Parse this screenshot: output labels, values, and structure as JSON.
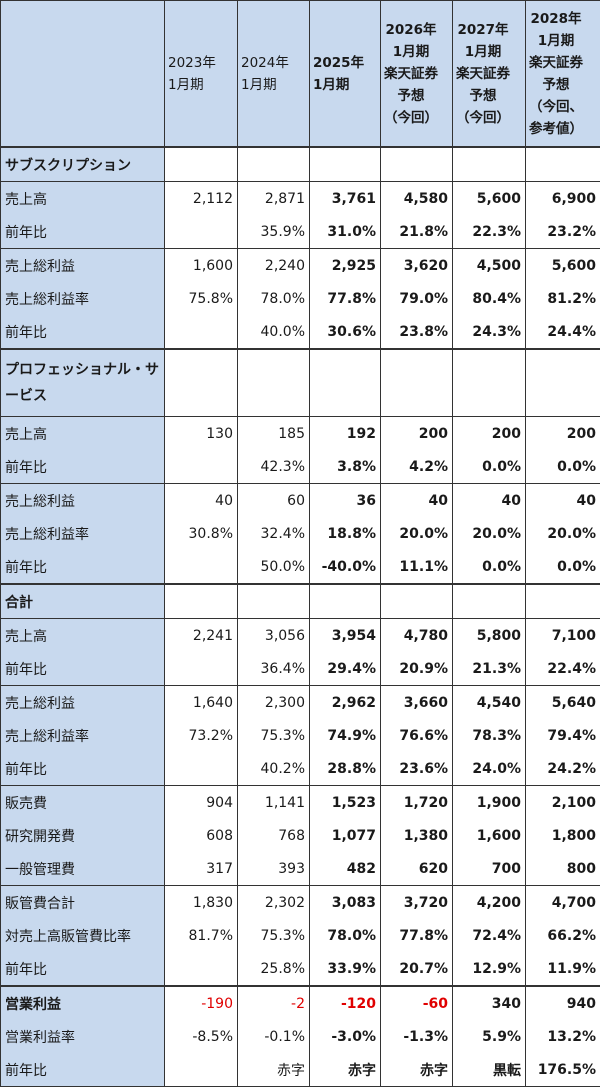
{
  "columns": [
    "2023年\n1月期",
    "2024年\n1月期",
    "2025年\n1月期",
    "2026年\n1月期\n楽天証券\n予想\n（今回）",
    "2027年\n1月期\n楽天証券\n予想\n（今回）",
    "2028年\n1月期\n楽天証券\n予想\n（今回、\n参考値）"
  ],
  "sections": [
    {
      "title": "サブスクリプション",
      "groups": [
        {
          "rows": [
            {
              "label": "売上高",
              "values": [
                "2,112",
                "2,871",
                "3,761",
                "4,580",
                "5,600",
                "6,900"
              ]
            },
            {
              "label": "前年比",
              "values": [
                "",
                "35.9%",
                "31.0%",
                "21.8%",
                "22.3%",
                "23.2%"
              ]
            }
          ]
        },
        {
          "rows": [
            {
              "label": "売上総利益",
              "values": [
                "1,600",
                "2,240",
                "2,925",
                "3,620",
                "4,500",
                "5,600"
              ]
            },
            {
              "label": "売上総利益率",
              "values": [
                "75.8%",
                "78.0%",
                "77.8%",
                "79.0%",
                "80.4%",
                "81.2%"
              ]
            },
            {
              "label": "前年比",
              "values": [
                "",
                "40.0%",
                "30.6%",
                "23.8%",
                "24.3%",
                "24.4%"
              ]
            }
          ]
        }
      ]
    },
    {
      "title": "プロフェッショナル・サービス",
      "groups": [
        {
          "rows": [
            {
              "label": "売上高",
              "values": [
                "130",
                "185",
                "192",
                "200",
                "200",
                "200"
              ]
            },
            {
              "label": "前年比",
              "values": [
                "",
                "42.3%",
                "3.8%",
                "4.2%",
                "0.0%",
                "0.0%"
              ]
            }
          ]
        },
        {
          "rows": [
            {
              "label": "売上総利益",
              "values": [
                "40",
                "60",
                "36",
                "40",
                "40",
                "40"
              ]
            },
            {
              "label": "売上総利益率",
              "values": [
                "30.8%",
                "32.4%",
                "18.8%",
                "20.0%",
                "20.0%",
                "20.0%"
              ]
            },
            {
              "label": "前年比",
              "values": [
                "",
                "50.0%",
                "-40.0%",
                "11.1%",
                "0.0%",
                "0.0%"
              ]
            }
          ]
        }
      ]
    },
    {
      "title": "合計",
      "groups": [
        {
          "rows": [
            {
              "label": "売上高",
              "values": [
                "2,241",
                "3,056",
                "3,954",
                "4,780",
                "5,800",
                "7,100"
              ]
            },
            {
              "label": "前年比",
              "values": [
                "",
                "36.4%",
                "29.4%",
                "20.9%",
                "21.3%",
                "22.4%"
              ]
            }
          ]
        },
        {
          "rows": [
            {
              "label": "売上総利益",
              "values": [
                "1,640",
                "2,300",
                "2,962",
                "3,660",
                "4,540",
                "5,640"
              ]
            },
            {
              "label": "売上総利益率",
              "values": [
                "73.2%",
                "75.3%",
                "74.9%",
                "76.6%",
                "78.3%",
                "79.4%"
              ]
            },
            {
              "label": "前年比",
              "values": [
                "",
                "40.2%",
                "28.8%",
                "23.6%",
                "24.0%",
                "24.2%"
              ]
            }
          ]
        },
        {
          "rows": [
            {
              "label": "販売費",
              "values": [
                "904",
                "1,141",
                "1,523",
                "1,720",
                "1,900",
                "2,100"
              ]
            },
            {
              "label": "研究開発費",
              "values": [
                "608",
                "768",
                "1,077",
                "1,380",
                "1,600",
                "1,800"
              ]
            },
            {
              "label": "一般管理費",
              "values": [
                "317",
                "393",
                "482",
                "620",
                "700",
                "800"
              ]
            }
          ]
        },
        {
          "rows": [
            {
              "label": "販管費合計",
              "values": [
                "1,830",
                "2,302",
                "3,083",
                "3,720",
                "4,200",
                "4,700"
              ]
            },
            {
              "label": "対売上高販管費比率",
              "values": [
                "81.7%",
                "75.3%",
                "78.0%",
                "77.8%",
                "72.4%",
                "66.2%"
              ]
            },
            {
              "label": "前年比",
              "values": [
                "",
                "25.8%",
                "33.9%",
                "20.7%",
                "12.9%",
                "11.9%"
              ]
            }
          ]
        }
      ]
    },
    {
      "title": "",
      "groups": [
        {
          "rows": [
            {
              "label": "営業利益",
              "values": [
                "-190",
                "-2",
                "-120",
                "-60",
                "340",
                "940"
              ],
              "negative": [
                true,
                true,
                true,
                true,
                false,
                false
              ]
            },
            {
              "label": "営業利益率",
              "values": [
                "-8.5%",
                "-0.1%",
                "-3.0%",
                "-1.3%",
                "5.9%",
                "13.2%"
              ]
            },
            {
              "label": "前年比",
              "values": [
                "",
                "赤字",
                "赤字",
                "赤字",
                "黒転",
                "176.5%"
              ]
            }
          ]
        }
      ]
    }
  ],
  "colors": {
    "label_bg": "#c8d9ee",
    "negative": "#e00000",
    "border": "#333333"
  }
}
